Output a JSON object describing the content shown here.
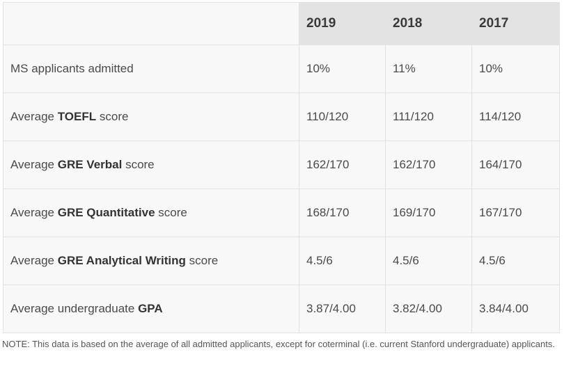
{
  "header": {
    "years": [
      "2019",
      "2018",
      "2017"
    ]
  },
  "rows": [
    {
      "label": {
        "pre": "MS applicants admitted",
        "bold": "",
        "post": ""
      },
      "values": [
        "10%",
        "11%",
        "10%"
      ]
    },
    {
      "label": {
        "pre": "Average ",
        "bold": "TOEFL",
        "post": " score"
      },
      "values": [
        "110/120",
        "111/120",
        "114/120"
      ]
    },
    {
      "label": {
        "pre": "Average ",
        "bold": "GRE Verbal",
        "post": " score"
      },
      "values": [
        "162/170",
        "162/170",
        "164/170"
      ]
    },
    {
      "label": {
        "pre": "Average ",
        "bold": "GRE Quantitative",
        "post": " score"
      },
      "values": [
        "168/170",
        "169/170",
        "167/170"
      ]
    },
    {
      "label": {
        "pre": "Average ",
        "bold": "GRE Analytical Writing",
        "post": " score"
      },
      "values": [
        "4.5/6",
        "4.5/6",
        "4.5/6"
      ]
    },
    {
      "label": {
        "pre": "Average undergraduate ",
        "bold": "GPA",
        "post": ""
      },
      "values": [
        "3.87/4.00",
        "3.82/4.00",
        "3.84/4.00"
      ]
    }
  ],
  "note": "NOTE: This data is based on the average of all admitted applicants, except for coterminal (i.e. current Stanford undergraduate) applicants."
}
